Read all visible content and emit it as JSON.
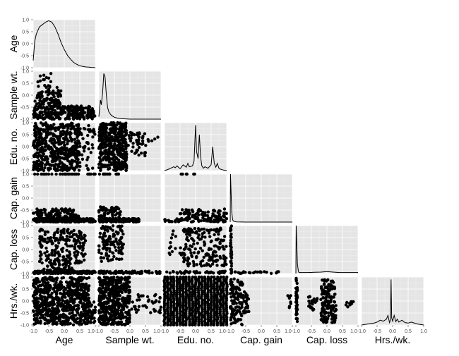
{
  "chart_data": {
    "type": "scatter",
    "subtype": "pairs-matrix (lower triangle scatter, diagonal density)",
    "background_color": "#E5E5E5",
    "grid": true,
    "grid_color": "#FFFFFF",
    "point_color": "#000000",
    "variables": [
      "Age",
      "Sample wt.",
      "Edu. no.",
      "Cap. gain",
      "Cap. loss",
      "Hrs./wk."
    ],
    "variable_labels": [
      "Age",
      "Sample wt.",
      "Edu. no.",
      "Cap. gain",
      "Cap. loss",
      "Hrs./wk."
    ],
    "axis_range": [
      -1.0,
      1.0
    ],
    "tick_values": [
      -1.0,
      -0.5,
      0.0,
      0.5,
      1.0
    ],
    "x_tick_labels": [
      "-1.0",
      "-0.5",
      "0.0",
      "0.5",
      "1.0"
    ],
    "x_tick_labels_joined": [
      "-1.0",
      "-0.5",
      "0.0",
      "0.5",
      "1.0-1.0",
      "-0.5",
      "0.0",
      "0.5",
      "1.0-1.0",
      "-0.5",
      "0.0",
      "0.5",
      "1.0-1.0",
      "-0.5",
      "0.0",
      "0.5",
      "1.0-1.0",
      "-0.5",
      "0.0",
      "0.5",
      "1.0-1.0",
      "-0.5",
      "0.0",
      "0.5",
      "1.0"
    ],
    "y_tick_labels": [
      "1.0",
      "0.5",
      "0.0",
      "-0.5",
      "-1.0"
    ],
    "densities": [
      {
        "name": "Age",
        "x": [
          -1.0,
          -0.95,
          -0.9,
          -0.8,
          -0.7,
          -0.6,
          -0.5,
          -0.4,
          -0.3,
          -0.2,
          -0.1,
          0.0,
          0.1,
          0.2,
          0.3,
          0.4,
          0.5,
          0.6,
          0.7,
          0.8,
          1.0
        ],
        "y": [
          0.15,
          0.55,
          0.7,
          0.85,
          0.9,
          0.95,
          0.98,
          0.95,
          0.85,
          0.7,
          0.52,
          0.38,
          0.26,
          0.18,
          0.11,
          0.07,
          0.04,
          0.025,
          0.015,
          0.01,
          0.0
        ]
      },
      {
        "name": "Sample wt.",
        "x": [
          -1.0,
          -0.95,
          -0.92,
          -0.88,
          -0.84,
          -0.8,
          -0.76,
          -0.72,
          -0.68,
          -0.6,
          -0.5,
          -0.4,
          -0.3,
          0.0,
          0.5,
          1.0
        ],
        "y": [
          0.05,
          0.4,
          0.3,
          0.55,
          0.95,
          0.88,
          0.5,
          0.25,
          0.15,
          0.08,
          0.04,
          0.02,
          0.01,
          0.0,
          0.0,
          0.0
        ]
      },
      {
        "name": "Edu. no.",
        "x": [
          -1.0,
          -0.9,
          -0.8,
          -0.7,
          -0.65,
          -0.6,
          -0.5,
          -0.4,
          -0.3,
          -0.25,
          -0.2,
          -0.1,
          -0.05,
          0.0,
          0.03,
          0.08,
          0.12,
          0.16,
          0.2,
          0.25,
          0.3,
          0.4,
          0.5,
          0.55,
          0.6,
          0.65,
          0.7,
          0.75,
          0.8,
          0.9,
          1.0
        ],
        "y": [
          0.0,
          0.02,
          0.05,
          0.08,
          0.06,
          0.1,
          0.04,
          0.12,
          0.07,
          0.15,
          0.08,
          0.1,
          0.2,
          0.95,
          0.4,
          0.25,
          0.75,
          0.3,
          0.1,
          0.05,
          0.08,
          0.05,
          0.12,
          0.5,
          0.15,
          0.07,
          0.15,
          0.05,
          0.03,
          0.01,
          0.0
        ]
      },
      {
        "name": "Cap. gain",
        "x": [
          -1.0,
          -0.99,
          -0.97,
          -0.95,
          -0.92,
          -0.9,
          -0.85,
          -0.8,
          -0.5,
          0.0,
          0.5,
          1.0
        ],
        "y": [
          0.0,
          1.0,
          0.6,
          0.2,
          0.05,
          0.02,
          0.01,
          0.005,
          0.0,
          0.0,
          0.0,
          0.0
        ]
      },
      {
        "name": "Cap. loss",
        "x": [
          -1.0,
          -0.99,
          -0.97,
          -0.95,
          -0.92,
          -0.9,
          -0.8,
          -0.6,
          -0.4,
          -0.2,
          0.0,
          0.2,
          0.4,
          0.6,
          0.8,
          1.0
        ],
        "y": [
          0.0,
          1.0,
          0.6,
          0.2,
          0.05,
          0.02,
          0.02,
          0.02,
          0.025,
          0.03,
          0.04,
          0.03,
          0.02,
          0.02,
          0.02,
          0.02
        ]
      },
      {
        "name": "Hrs./wk.",
        "x": [
          -1.0,
          -0.8,
          -0.6,
          -0.5,
          -0.4,
          -0.3,
          -0.2,
          -0.15,
          -0.1,
          -0.07,
          -0.05,
          -0.03,
          0.0,
          0.05,
          0.1,
          0.15,
          0.2,
          0.3,
          0.4,
          0.5,
          0.6,
          0.8,
          1.0
        ],
        "y": [
          0.0,
          0.02,
          0.04,
          0.06,
          0.1,
          0.08,
          0.12,
          0.2,
          0.05,
          0.1,
          0.95,
          0.15,
          0.08,
          0.2,
          0.07,
          0.12,
          0.06,
          0.1,
          0.05,
          0.04,
          0.06,
          0.02,
          0.0
        ]
      }
    ],
    "scatter_panels": [
      {
        "row": "Sample wt.",
        "col": "Age",
        "clusters": [
          {
            "x": [
              -1.0,
              0.95
            ],
            "y": [
              -1.0,
              -0.45
            ],
            "n": 260
          },
          {
            "x": [
              -0.95,
              -0.1
            ],
            "y": [
              -0.45,
              0.2
            ],
            "n": 90
          },
          {
            "x": [
              -0.85,
              -0.15
            ],
            "y": [
              0.2,
              0.95
            ],
            "n": 18
          },
          {
            "x": [
              0.85,
              1.0
            ],
            "y": [
              -0.9,
              -0.6
            ],
            "n": 14
          }
        ]
      },
      {
        "row": "Edu. no.",
        "col": "Age",
        "clusters": [
          {
            "x": [
              -1.0,
              0.5
            ],
            "y": [
              -1.0,
              1.0
            ],
            "n": 520
          },
          {
            "x": [
              0.5,
              1.0
            ],
            "y": [
              -1.0,
              1.0
            ],
            "n": 40
          }
        ]
      },
      {
        "row": "Edu. no.",
        "col": "Sample wt.",
        "clusters": [
          {
            "x": [
              -1.0,
              -0.1
            ],
            "y": [
              -1.0,
              1.0
            ],
            "n": 420
          },
          {
            "x": [
              -0.1,
              0.5
            ],
            "y": [
              -0.4,
              0.6
            ],
            "n": 45
          },
          {
            "x": [
              0.5,
              1.0
            ],
            "y": [
              0.0,
              0.5
            ],
            "n": 6
          }
        ]
      },
      {
        "row": "Cap. gain",
        "col": "Age",
        "clusters": [
          {
            "x": [
              -1.0,
              1.0
            ],
            "y": [
              -1.0,
              -0.85
            ],
            "n": 260
          },
          {
            "x": [
              -1.0,
              0.3
            ],
            "y": [
              -0.7,
              -0.45
            ],
            "n": 60
          },
          {
            "x": [
              -0.9,
              0.5
            ],
            "y": [
              -0.85,
              -0.7
            ],
            "n": 60
          },
          {
            "x": [
              -1.0,
              1.0
            ],
            "y": [
              1.0,
              1.0
            ],
            "n": 30
          }
        ]
      },
      {
        "row": "Cap. gain",
        "col": "Sample wt.",
        "clusters": [
          {
            "x": [
              -1.0,
              0.3
            ],
            "y": [
              -1.0,
              -0.85
            ],
            "n": 160
          },
          {
            "x": [
              -1.0,
              -0.3
            ],
            "y": [
              -0.85,
              -0.35
            ],
            "n": 55
          },
          {
            "x": [
              -1.0,
              -0.3
            ],
            "y": [
              1.0,
              1.0
            ],
            "n": 14
          }
        ]
      },
      {
        "row": "Cap. gain",
        "col": "Edu. no.",
        "clusters": [
          {
            "x": [
              -1.0,
              1.0
            ],
            "y": [
              -1.0,
              -0.85
            ],
            "n": 70
          },
          {
            "x": [
              -0.5,
              1.0
            ],
            "y": [
              -0.85,
              -0.45
            ],
            "n": 70
          },
          {
            "x": [
              -0.5,
              0.5
            ],
            "y": [
              1.0,
              1.0
            ],
            "n": 6
          }
        ]
      },
      {
        "row": "Cap. loss",
        "col": "Age",
        "clusters": [
          {
            "x": [
              -1.0,
              1.0
            ],
            "y": [
              -1.0,
              -0.9
            ],
            "n": 240
          },
          {
            "x": [
              -0.8,
              0.7
            ],
            "y": [
              -0.6,
              0.85
            ],
            "n": 210
          },
          {
            "x": [
              -0.7,
              0.3
            ],
            "y": [
              -0.9,
              -0.6
            ],
            "n": 40
          }
        ]
      },
      {
        "row": "Cap. loss",
        "col": "Sample wt.",
        "clusters": [
          {
            "x": [
              -1.0,
              1.0
            ],
            "y": [
              -1.0,
              -0.9
            ],
            "n": 100
          },
          {
            "x": [
              -1.0,
              -0.2
            ],
            "y": [
              -0.5,
              1.0
            ],
            "n": 120
          }
        ]
      },
      {
        "row": "Cap. loss",
        "col": "Edu. no.",
        "clusters": [
          {
            "x": [
              -1.0,
              1.0
            ],
            "y": [
              -1.0,
              -0.9
            ],
            "n": 40
          },
          {
            "x": [
              -0.4,
              1.0
            ],
            "y": [
              -0.7,
              0.9
            ],
            "n": 180
          },
          {
            "x": [
              -0.9,
              -0.4
            ],
            "y": [
              -0.3,
              0.8
            ],
            "n": 15
          }
        ]
      },
      {
        "row": "Cap. loss",
        "col": "Cap. gain",
        "clusters": [
          {
            "x": [
              -1.0,
              -0.95
            ],
            "y": [
              -1.0,
              1.0
            ],
            "n": 40
          },
          {
            "x": [
              -1.0,
              0.7
            ],
            "y": [
              -1.0,
              -0.92
            ],
            "n": 25
          }
        ]
      },
      {
        "row": "Hrs./wk.",
        "col": "Age",
        "clusters": [
          {
            "x": [
              -1.0,
              0.8
            ],
            "y": [
              -1.0,
              1.0
            ],
            "n": 700
          },
          {
            "x": [
              0.8,
              1.0
            ],
            "y": [
              -0.9,
              0.0
            ],
            "n": 30
          }
        ]
      },
      {
        "row": "Hrs./wk.",
        "col": "Sample wt.",
        "clusters": [
          {
            "x": [
              -1.0,
              0.0
            ],
            "y": [
              -1.0,
              1.0
            ],
            "n": 480
          },
          {
            "x": [
              0.0,
              1.0
            ],
            "y": [
              -0.5,
              0.3
            ],
            "n": 40
          }
        ]
      },
      {
        "row": "Hrs./wk.",
        "col": "Edu. no.",
        "columns_x": [
          -1.0,
          -0.9,
          -0.8,
          -0.7,
          -0.6,
          -0.5,
          -0.4,
          -0.3,
          -0.2,
          -0.1,
          0.0,
          0.1,
          0.2,
          0.3,
          0.4,
          0.5,
          0.6,
          0.7,
          0.8,
          0.9,
          1.0
        ],
        "y": [
          -1.0,
          1.0
        ],
        "n_per_column": 26
      },
      {
        "row": "Hrs./wk.",
        "col": "Cap. gain",
        "clusters": [
          {
            "x": [
              -1.0,
              -0.6
            ],
            "y": [
              -1.0,
              1.0
            ],
            "n": 120
          },
          {
            "x": [
              -0.6,
              -0.4
            ],
            "y": [
              -0.6,
              0.4
            ],
            "n": 25
          },
          {
            "x": [
              0.85,
              0.95
            ],
            "y": [
              -0.3,
              0.3
            ],
            "n": 8
          }
        ]
      },
      {
        "row": "Hrs./wk.",
        "col": "Cap. loss",
        "clusters": [
          {
            "x": [
              -1.0,
              -0.95
            ],
            "y": [
              -1.0,
              1.0
            ],
            "n": 45
          },
          {
            "x": [
              -0.6,
              -0.3
            ],
            "y": [
              -0.4,
              0.2
            ],
            "n": 22
          },
          {
            "x": [
              -0.2,
              0.3
            ],
            "y": [
              -0.9,
              0.9
            ],
            "n": 150
          },
          {
            "x": [
              0.6,
              0.9
            ],
            "y": [
              -0.3,
              0.0
            ],
            "n": 8
          }
        ]
      }
    ]
  }
}
